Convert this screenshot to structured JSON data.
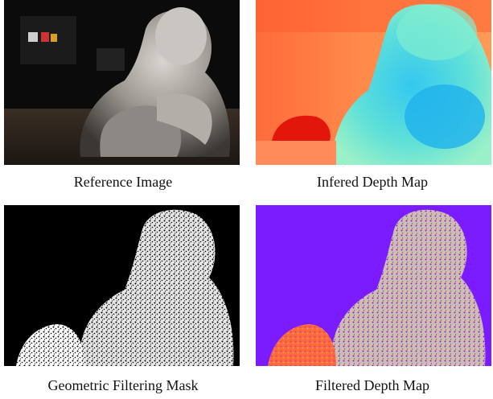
{
  "panels": [
    {
      "id": "reference",
      "caption": "Reference Image",
      "icon": "statue-photo"
    },
    {
      "id": "inferred",
      "caption": "Infered Depth Map",
      "icon": "depth-map"
    },
    {
      "id": "mask",
      "caption": "Geometric Filtering Mask",
      "icon": "mask-map"
    },
    {
      "id": "filtered",
      "caption": "Filtered Depth Map",
      "icon": "filtered-depth-map"
    }
  ],
  "colors": {
    "background": "#ffffff",
    "mask_background": "#000000",
    "filtered_background": "#7a1cff",
    "depth_near": "#ff3b1f",
    "depth_far": "#1fb8ff"
  }
}
